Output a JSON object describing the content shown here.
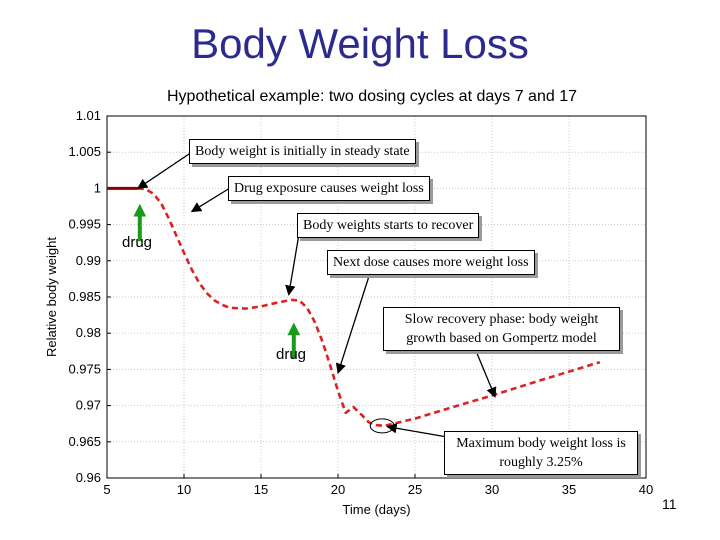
{
  "slide": {
    "title": "Body Weight Loss",
    "subtitle": "Hypothetical example: two dosing cycles at days 7 and 17",
    "page_number": "11"
  },
  "chart_data": {
    "type": "line",
    "xlabel": "Time (days)",
    "ylabel": "Relative body weight",
    "xlim": [
      5,
      40
    ],
    "ylim": [
      0.96,
      1.01
    ],
    "xticks": [
      5,
      10,
      15,
      20,
      25,
      30,
      35,
      40
    ],
    "yticks": [
      0.96,
      0.965,
      0.97,
      0.975,
      0.98,
      0.985,
      0.99,
      0.995,
      1,
      1.005,
      1.01
    ],
    "ytick_labels": [
      "0.96",
      "0.965",
      "0.97",
      "0.975",
      "0.98",
      "0.985",
      "0.99",
      "0.995",
      "1",
      "1.005",
      "1.01"
    ],
    "xtick_labels": [
      "5",
      "10",
      "15",
      "20",
      "25",
      "30",
      "35",
      "40"
    ],
    "grid": true,
    "series": [
      {
        "style": "solid",
        "color": "#8b0000",
        "x": [
          5.0,
          7.0
        ],
        "y": [
          1.0,
          1.0
        ]
      },
      {
        "style": "dashed",
        "color": "#dd2222",
        "x": [
          7.0,
          7.5,
          8.0,
          8.5,
          9.0,
          9.5,
          10.0,
          10.5,
          11.0,
          11.5,
          12.0,
          12.5,
          13.0,
          14.0,
          15.0,
          16.0,
          17.0,
          17.5,
          18.0,
          18.5,
          19.0,
          19.5,
          20.0,
          20.5,
          21.0,
          21.5,
          22.0,
          22.5,
          23.0,
          25.0,
          27.0,
          30.0,
          33.0,
          35.0,
          37.0
        ],
        "y": [
          1.0,
          0.9999,
          0.9993,
          0.998,
          0.9959,
          0.9935,
          0.9911,
          0.9888,
          0.9869,
          0.9855,
          0.9845,
          0.9839,
          0.9835,
          0.9834,
          0.9837,
          0.9842,
          0.9846,
          0.9845,
          0.9835,
          0.9815,
          0.9788,
          0.9755,
          0.972,
          0.969,
          0.9698,
          0.9688,
          0.9677,
          0.9673,
          0.9672,
          0.9682,
          0.9695,
          0.9714,
          0.9734,
          0.9747,
          0.976
        ]
      }
    ],
    "drug_markers": [
      {
        "label": "drug",
        "x": 7.0,
        "y_top": 0.9981,
        "y_bottom": 0.9927
      },
      {
        "label": "drug",
        "x": 17.0,
        "y_top": 0.9817,
        "y_bottom": 0.9765
      }
    ],
    "highlight_ellipse": {
      "x": 23.0,
      "y": 0.9672
    },
    "annotations": [
      {
        "text": "Body weight is initially in steady state",
        "target_x": 7.0,
        "target_y": 1.0
      },
      {
        "text": "Drug exposure causes weight loss",
        "target_x": 10.5,
        "target_y": 0.9968
      },
      {
        "text": "Body weights starts to recover",
        "target_x": 16.8,
        "target_y": 0.9853
      },
      {
        "text": "Next dose causes more weight loss",
        "target_x": 20.0,
        "target_y": 0.9745
      },
      {
        "text": "Slow recovery phase: body weight growth based on Gompertz model",
        "target_x": 30.2,
        "target_y": 0.9712
      },
      {
        "text": "Maximum body weight loss is roughly 3.25%",
        "target_x": 23.2,
        "target_y": 0.9671
      }
    ]
  }
}
